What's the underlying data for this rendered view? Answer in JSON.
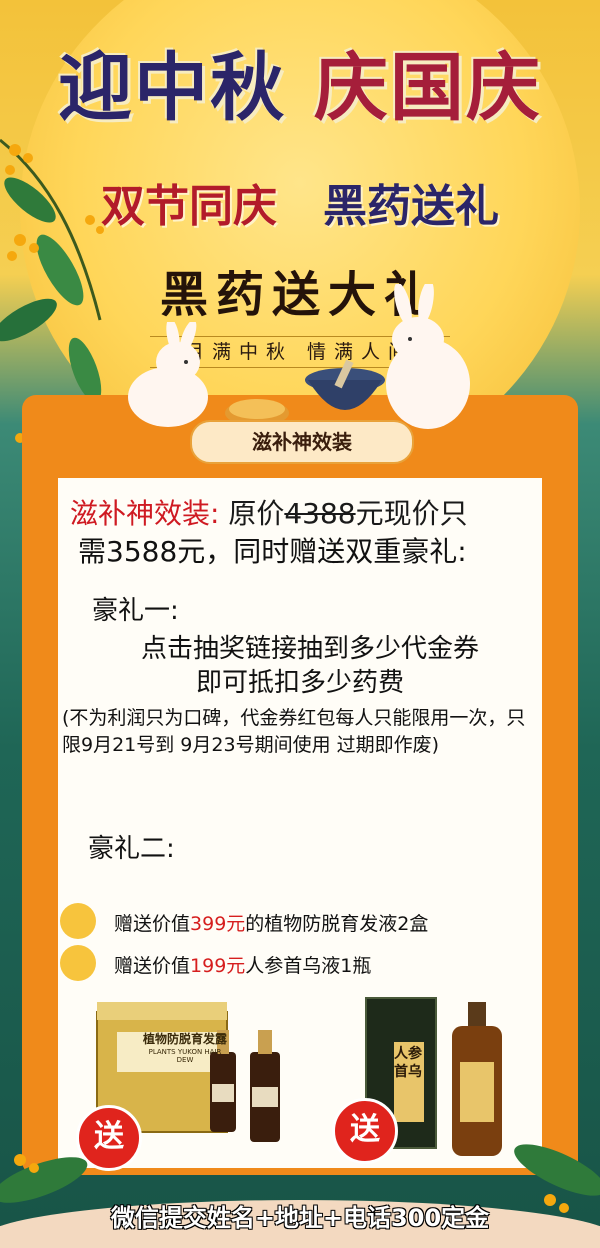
{
  "header": {
    "title_part1": "迎中秋",
    "title_part2": "庆国庆",
    "slogan_part1": "双节同庆",
    "slogan_part2": "黑药送礼",
    "main_title": "黑药送大礼",
    "subtitle": "月满中秋  情满人间"
  },
  "banner": {
    "label": "滋补神效装"
  },
  "offer": {
    "package_name": "滋补神效装:",
    "price_prefix": " 原价",
    "original_price": "4388",
    "price_suffix": "元现价只",
    "line2": "需3588元，同时赠送双重豪礼:"
  },
  "gift1": {
    "heading": "豪礼一:",
    "line1": "点击抽奖链接抽到多少代金券",
    "line2": "即可抵扣多少药费",
    "note": "(不为利润只为口碑，代金券红包每人只能限用一次，只限9月21号到 9月23号期间使用 过期即作废)"
  },
  "gift2": {
    "heading": "豪礼二:",
    "items": [
      {
        "prefix": "赠送价值",
        "price": "399元",
        "suffix": "的植物防脱育发液2盒"
      },
      {
        "prefix": "赠送价值",
        "price": "199元",
        "suffix": "人参首乌液1瓶"
      }
    ]
  },
  "products": {
    "box_left_label": "植物防脱育发露",
    "box_left_en": "PLANTS YUKON HAIR DEW",
    "box_right_label": "人参首乌",
    "send_label": "送"
  },
  "footer": {
    "text": "微信提交姓名+地址+电话300定金"
  },
  "colors": {
    "accent_red": "#d61e1e",
    "card_orange": "#f08a1a",
    "moon_yellow": "#ffd659",
    "title_navy": "#2b2569"
  }
}
